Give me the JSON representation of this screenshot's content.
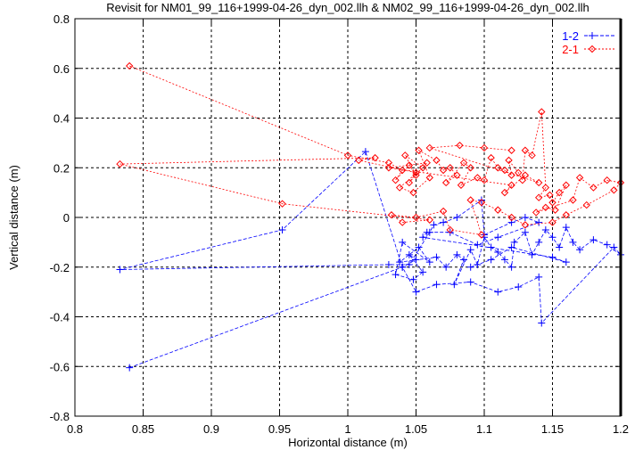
{
  "chart_data": {
    "type": "scatter",
    "title": "Revisit for NM01_99_116+1999-04-26_dyn_002.llh & NM02_99_116+1999-04-26_dyn_002.llh",
    "xlabel": "Horizontal distance (m)",
    "ylabel": "Vertical distance (m)",
    "xlim": [
      0.8,
      1.2
    ],
    "ylim": [
      -0.8,
      0.8
    ],
    "xticks": [
      "0.8",
      "0.85",
      "0.9",
      "0.95",
      "1",
      "1.05",
      "1.1",
      "1.15",
      "1.2"
    ],
    "yticks": [
      "-0.8",
      "-0.6",
      "-0.4",
      "-0.2",
      "0",
      "0.2",
      "0.4",
      "0.6",
      "0.8"
    ],
    "grid": true,
    "legend_position": "top-right",
    "series": [
      {
        "name": "1-2",
        "color": "#0000ff",
        "marker": "plus",
        "line": "dashed",
        "points": [
          [
            0.84,
            -0.605
          ],
          [
            1.04,
            -0.2
          ],
          [
            1.05,
            -0.17
          ],
          [
            1.045,
            -0.15
          ],
          [
            1.055,
            -0.22
          ],
          [
            1.048,
            -0.25
          ],
          [
            1.035,
            -0.23
          ],
          [
            1.04,
            -0.1
          ],
          [
            1.06,
            -0.18
          ],
          [
            1.052,
            -0.12
          ],
          [
            1.038,
            -0.18
          ],
          [
            1.065,
            -0.16
          ],
          [
            1.072,
            -0.2
          ],
          [
            1.08,
            -0.15
          ],
          [
            1.085,
            -0.17
          ],
          [
            1.078,
            -0.27
          ],
          [
            1.09,
            -0.13
          ],
          [
            1.095,
            -0.19
          ],
          [
            1.1,
            -0.08
          ],
          [
            1.105,
            -0.12
          ],
          [
            1.11,
            -0.14
          ],
          [
            1.115,
            -0.17
          ],
          [
            1.12,
            -0.2
          ],
          [
            1.122,
            -0.1
          ],
          [
            1.13,
            -0.06
          ],
          [
            1.135,
            -0.15
          ],
          [
            1.14,
            -0.1
          ],
          [
            1.145,
            -0.05
          ],
          [
            1.15,
            -0.08
          ],
          [
            1.155,
            -0.12
          ],
          [
            1.16,
            -0.04
          ],
          [
            1.165,
            -0.1
          ],
          [
            1.17,
            -0.13
          ],
          [
            1.18,
            -0.09
          ],
          [
            1.19,
            -0.11
          ],
          [
            1.2,
            -0.15
          ],
          [
            1.195,
            -0.12
          ],
          [
            1.142,
            -0.425
          ],
          [
            1.14,
            -0.24
          ],
          [
            1.125,
            -0.28
          ],
          [
            1.11,
            -0.3
          ],
          [
            1.09,
            -0.26
          ],
          [
            1.065,
            -0.27
          ],
          [
            1.05,
            -0.3
          ],
          [
            1.04,
            -0.2
          ],
          [
            1.013,
            0.265
          ],
          [
            0.952,
            -0.05
          ],
          [
            0.833,
            -0.21
          ],
          [
            1.03,
            -0.19
          ],
          [
            1.045,
            -0.19
          ],
          [
            1.06,
            -0.06
          ],
          [
            1.063,
            -0.03
          ],
          [
            1.07,
            -0.02
          ],
          [
            1.08,
            0.0
          ],
          [
            1.098,
            0.07
          ],
          [
            1.1,
            -0.07
          ],
          [
            1.12,
            -0.02
          ],
          [
            1.13,
            0.0
          ],
          [
            1.14,
            -0.02
          ],
          [
            1.11,
            -0.08
          ],
          [
            1.095,
            -0.11
          ],
          [
            1.075,
            -0.06
          ],
          [
            1.058,
            -0.06
          ],
          [
            1.055,
            -0.08
          ],
          [
            1.15,
            -0.16
          ],
          [
            1.16,
            -0.18
          ],
          [
            1.12,
            -0.12
          ],
          [
            1.105,
            -0.17
          ],
          [
            1.09,
            -0.2
          ]
        ]
      },
      {
        "name": "2-1",
        "color": "#ff0000",
        "marker": "diamond",
        "line": "dotted",
        "points": [
          [
            0.84,
            0.61
          ],
          [
            1.0,
            0.25
          ],
          [
            1.03,
            0.22
          ],
          [
            1.04,
            0.19
          ],
          [
            1.035,
            0.15
          ],
          [
            1.045,
            0.21
          ],
          [
            1.05,
            0.17
          ],
          [
            1.042,
            0.25
          ],
          [
            1.055,
            0.2
          ],
          [
            1.038,
            0.12
          ],
          [
            1.048,
            0.1
          ],
          [
            1.06,
            0.16
          ],
          [
            1.052,
            0.27
          ],
          [
            1.065,
            0.23
          ],
          [
            1.07,
            0.19
          ],
          [
            1.075,
            0.2
          ],
          [
            1.08,
            0.17
          ],
          [
            1.072,
            0.14
          ],
          [
            1.085,
            0.22
          ],
          [
            1.09,
            0.2
          ],
          [
            1.083,
            0.13
          ],
          [
            1.095,
            0.16
          ],
          [
            1.1,
            0.15
          ],
          [
            1.105,
            0.24
          ],
          [
            1.11,
            0.2
          ],
          [
            1.115,
            0.19
          ],
          [
            1.12,
            0.17
          ],
          [
            1.118,
            0.23
          ],
          [
            1.125,
            0.18
          ],
          [
            1.128,
            0.15
          ],
          [
            1.13,
            0.27
          ],
          [
            1.135,
            0.25
          ],
          [
            1.142,
            0.425
          ],
          [
            1.145,
            0.12
          ],
          [
            1.14,
            0.08
          ],
          [
            1.148,
            0.09
          ],
          [
            1.15,
            0.06
          ],
          [
            1.155,
            0.1
          ],
          [
            1.16,
            0.13
          ],
          [
            1.152,
            0.03
          ],
          [
            1.145,
            0.04
          ],
          [
            1.138,
            0.02
          ],
          [
            1.165,
            0.07
          ],
          [
            1.17,
            0.16
          ],
          [
            1.18,
            0.12
          ],
          [
            1.19,
            0.15
          ],
          [
            1.2,
            0.14
          ],
          [
            1.195,
            0.11
          ],
          [
            1.175,
            0.05
          ],
          [
            1.16,
            0.01
          ],
          [
            1.15,
            -0.02
          ],
          [
            1.13,
            -0.03
          ],
          [
            1.12,
            0.0
          ],
          [
            1.11,
            0.03
          ],
          [
            1.098,
            0.06
          ],
          [
            1.09,
            0.07
          ],
          [
            1.098,
            -0.07
          ],
          [
            1.075,
            -0.05
          ],
          [
            1.07,
            0.025
          ],
          [
            1.05,
            0.0
          ],
          [
            1.032,
            0.01
          ],
          [
            1.04,
            -0.02
          ],
          [
            1.06,
            -0.01
          ],
          [
            0.952,
            0.055
          ],
          [
            0.833,
            0.215
          ],
          [
            1.02,
            0.24
          ],
          [
            1.008,
            0.23
          ],
          [
            1.05,
            0.18
          ],
          [
            1.045,
            0.14
          ],
          [
            1.058,
            0.22
          ],
          [
            1.03,
            0.2
          ],
          [
            1.12,
            0.13
          ],
          [
            1.115,
            0.1
          ],
          [
            1.13,
            0.17
          ],
          [
            1.14,
            0.14
          ],
          [
            1.06,
            0.28
          ],
          [
            1.082,
            0.29
          ],
          [
            1.1,
            0.28
          ],
          [
            1.12,
            0.27
          ]
        ]
      }
    ]
  }
}
